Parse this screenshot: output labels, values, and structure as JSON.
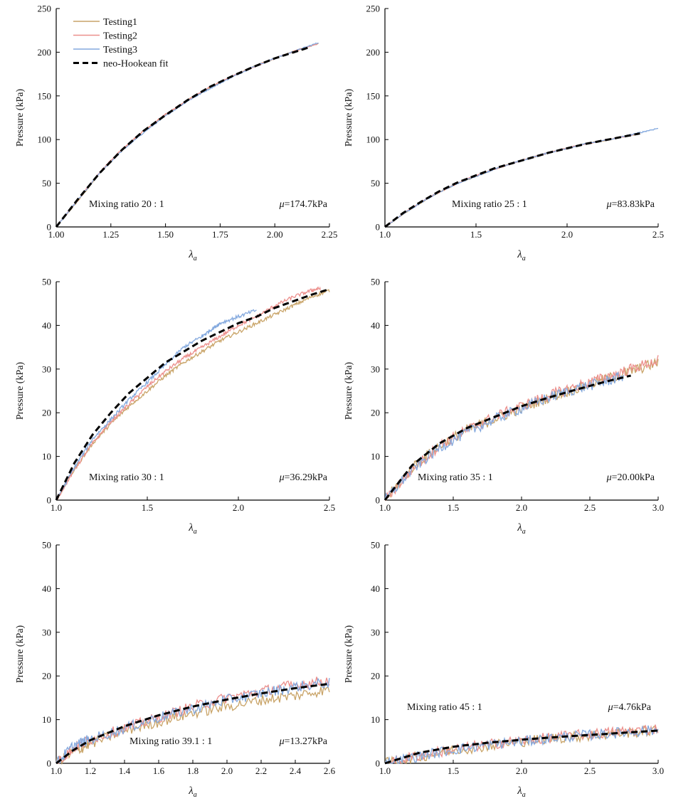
{
  "colors": {
    "Testing1": "#c9a468",
    "Testing2": "#ec8f8c",
    "Testing3": "#84a9de",
    "fit": "#000000"
  },
  "legend": [
    {
      "name": "Testing1",
      "style": "solid",
      "color": "#c9a468"
    },
    {
      "name": "Testing2",
      "style": "solid",
      "color": "#ec8f8c"
    },
    {
      "name": "Testing3",
      "style": "solid",
      "color": "#84a9de"
    },
    {
      "name": "neo-Hookean fit",
      "style": "dashed",
      "color": "#000000"
    }
  ],
  "chart_data": [
    {
      "type": "line",
      "ylabel": "Pressure (kPa)",
      "xlabel_main": "λ",
      "xlabel_sub": "a",
      "xlim": [
        1.0,
        2.25
      ],
      "ylim": [
        0,
        250
      ],
      "xticks": [
        1.0,
        1.25,
        1.5,
        1.75,
        2.0,
        2.25
      ],
      "xticklabels": [
        "1.00",
        "1.25",
        "1.50",
        "1.75",
        "2.00",
        "2.25"
      ],
      "yticks": [
        0,
        50,
        100,
        150,
        200,
        250
      ],
      "yticklabels": [
        "0",
        "50",
        "100",
        "150",
        "200",
        "250"
      ],
      "annotation": "Mixing ratio 20 : 1",
      "mu_symbol": "μ",
      "mu_text": "=174.7kPa",
      "legend": "top-left",
      "series": [
        {
          "name": "Testing1",
          "x": [
            1.0,
            1.1,
            1.2,
            1.3,
            1.4,
            1.5,
            1.6,
            1.7,
            1.8,
            1.9,
            2.0,
            2.1,
            2.2
          ],
          "y": [
            0,
            30,
            62,
            88,
            110,
            128,
            145,
            159,
            172,
            183,
            193,
            202,
            210
          ]
        },
        {
          "name": "Testing2",
          "x": [
            1.0,
            1.1,
            1.2,
            1.3,
            1.4,
            1.5,
            1.6,
            1.7,
            1.8,
            1.9,
            2.0,
            2.1,
            2.2
          ],
          "y": [
            0,
            31,
            63,
            89,
            110,
            129,
            145,
            160,
            172,
            183,
            193,
            202,
            210
          ]
        },
        {
          "name": "Testing3",
          "x": [
            1.0,
            1.1,
            1.2,
            1.3,
            1.4,
            1.5,
            1.6,
            1.7,
            1.8,
            1.9,
            2.0,
            2.1,
            2.2
          ],
          "y": [
            0,
            31,
            62,
            87,
            108,
            127,
            144,
            158,
            171,
            183,
            193,
            202,
            211
          ]
        },
        {
          "name": "neo-Hookean fit",
          "x": [
            1.0,
            1.1,
            1.2,
            1.3,
            1.4,
            1.5,
            1.6,
            1.7,
            1.8,
            1.9,
            2.0,
            2.1,
            2.15
          ],
          "y": [
            0,
            32,
            62,
            88,
            110,
            128,
            145,
            160,
            172,
            183,
            193,
            201,
            205
          ]
        }
      ]
    },
    {
      "type": "line",
      "ylabel": "Pressure (kPa)",
      "xlabel_main": "λ",
      "xlabel_sub": "a",
      "xlim": [
        1.0,
        2.5
      ],
      "ylim": [
        0,
        250
      ],
      "xticks": [
        1.0,
        1.5,
        2.0,
        2.5
      ],
      "xticklabels": [
        "1.0",
        "1.5",
        "2.0",
        "2.5"
      ],
      "yticks": [
        0,
        50,
        100,
        150,
        200,
        250
      ],
      "yticklabels": [
        "0",
        "50",
        "100",
        "150",
        "200",
        "250"
      ],
      "annotation": "Mixing ratio 25 : 1",
      "mu_symbol": "μ",
      "mu_text": "=83.83kPa",
      "series": [
        {
          "name": "Testing1",
          "x": [
            1.0,
            1.1,
            1.2,
            1.3,
            1.4,
            1.5,
            1.6,
            1.7,
            1.8,
            1.9,
            2.0,
            2.1,
            2.2,
            2.3,
            2.4
          ],
          "y": [
            0,
            15,
            28,
            40,
            50,
            58,
            66,
            73,
            79,
            85,
            90,
            95,
            99,
            103,
            107
          ]
        },
        {
          "name": "Testing2",
          "x": [
            1.0,
            1.1,
            1.2,
            1.3,
            1.4,
            1.5,
            1.6,
            1.7,
            1.8,
            1.9,
            2.0,
            2.1,
            2.2,
            2.3,
            2.4
          ],
          "y": [
            0,
            15,
            29,
            40,
            50,
            59,
            66,
            73,
            79,
            85,
            90,
            95,
            99,
            103,
            107
          ]
        },
        {
          "name": "Testing3",
          "x": [
            1.0,
            1.1,
            1.2,
            1.3,
            1.4,
            1.5,
            1.6,
            1.7,
            1.8,
            1.9,
            2.0,
            2.1,
            2.2,
            2.3,
            2.4,
            2.5
          ],
          "y": [
            0,
            15,
            28,
            40,
            50,
            58,
            66,
            73,
            79,
            85,
            90,
            95,
            99,
            103,
            108,
            113
          ]
        },
        {
          "name": "neo-Hookean fit",
          "x": [
            1.0,
            1.1,
            1.2,
            1.3,
            1.4,
            1.5,
            1.6,
            1.7,
            1.8,
            1.9,
            2.0,
            2.1,
            2.2,
            2.3,
            2.4
          ],
          "y": [
            0,
            16,
            29,
            41,
            51,
            59,
            67,
            73,
            79,
            85,
            90,
            95,
            99,
            103,
            107
          ]
        }
      ]
    },
    {
      "type": "line",
      "ylabel": "Pressure (kPa)",
      "xlabel_main": "λ",
      "xlabel_sub": "a",
      "xlim": [
        1.0,
        2.5
      ],
      "ylim": [
        0,
        50
      ],
      "xticks": [
        1.0,
        1.5,
        2.0,
        2.5
      ],
      "xticklabels": [
        "1.0",
        "1.5",
        "2.0",
        "2.5"
      ],
      "yticks": [
        0,
        10,
        20,
        30,
        40,
        50
      ],
      "yticklabels": [
        "0",
        "10",
        "20",
        "30",
        "40",
        "50"
      ],
      "annotation": "Mixing ratio 30 : 1",
      "mu_symbol": "μ",
      "mu_text": "=36.29kPa",
      "series": [
        {
          "name": "Testing1",
          "x": [
            1.0,
            1.1,
            1.2,
            1.3,
            1.4,
            1.5,
            1.6,
            1.7,
            1.8,
            1.9,
            2.0,
            2.1,
            2.2,
            2.3,
            2.4,
            2.5
          ],
          "y": [
            0,
            7,
            13,
            17.5,
            21.5,
            25,
            28.5,
            31.5,
            34,
            36.5,
            38.5,
            40.5,
            42.5,
            44.5,
            46.5,
            48
          ]
        },
        {
          "name": "Testing2",
          "x": [
            1.0,
            1.1,
            1.2,
            1.3,
            1.4,
            1.5,
            1.6,
            1.7,
            1.8,
            1.9,
            2.0,
            2.1,
            2.2,
            2.3,
            2.4,
            2.45
          ],
          "y": [
            0,
            7,
            13,
            18,
            22,
            26,
            29.5,
            32.5,
            35,
            37.5,
            40,
            42,
            44.5,
            46.5,
            48,
            48.5
          ]
        },
        {
          "name": "Testing3",
          "x": [
            1.0,
            1.1,
            1.2,
            1.3,
            1.4,
            1.5,
            1.6,
            1.7,
            1.8,
            1.85,
            1.9,
            2.0,
            2.1
          ],
          "y": [
            0,
            7.5,
            14,
            18.5,
            23,
            27,
            31,
            35,
            37.5,
            39,
            40.5,
            42,
            43.5
          ]
        },
        {
          "name": "neo-Hookean fit",
          "x": [
            1.0,
            1.1,
            1.2,
            1.3,
            1.4,
            1.5,
            1.6,
            1.7,
            1.8,
            1.9,
            2.0,
            2.1,
            2.2,
            2.3,
            2.4,
            2.5
          ],
          "y": [
            0,
            8.5,
            15,
            20,
            24.5,
            28,
            31.5,
            34,
            36.5,
            38.5,
            40.5,
            42,
            44,
            45.5,
            47,
            48.3
          ]
        }
      ]
    },
    {
      "type": "line",
      "ylabel": "Pressure (kPa)",
      "xlabel_main": "λ",
      "xlabel_sub": "a",
      "xlim": [
        1.0,
        3.0
      ],
      "ylim": [
        0,
        50
      ],
      "xticks": [
        1.0,
        1.5,
        2.0,
        2.5,
        3.0
      ],
      "xticklabels": [
        "1.0",
        "1.5",
        "2.0",
        "2.5",
        "3.0"
      ],
      "yticks": [
        0,
        10,
        20,
        30,
        40,
        50
      ],
      "yticklabels": [
        "0",
        "10",
        "20",
        "30",
        "40",
        "50"
      ],
      "annotation": "Mixing ratio 35 : 1",
      "mu_symbol": "μ",
      "mu_text": "=20.00kPa",
      "series": [
        {
          "name": "Testing1",
          "x": [
            1.0,
            1.2,
            1.4,
            1.6,
            1.8,
            2.0,
            2.2,
            2.4,
            2.6,
            2.8,
            3.0
          ],
          "y": [
            0,
            7.5,
            12.5,
            16,
            18.5,
            21,
            23.5,
            25.5,
            27.5,
            29.5,
            31.5
          ]
        },
        {
          "name": "Testing2",
          "x": [
            1.0,
            1.2,
            1.4,
            1.6,
            1.8,
            2.0,
            2.2,
            2.4,
            2.6,
            2.8,
            3.0
          ],
          "y": [
            0,
            7,
            12.5,
            16,
            19,
            21.5,
            24,
            26,
            28,
            30,
            32
          ]
        },
        {
          "name": "Testing3",
          "x": [
            1.0,
            1.2,
            1.4,
            1.6,
            1.8,
            2.0,
            2.2,
            2.4,
            2.6,
            2.75
          ],
          "y": [
            0,
            7,
            12,
            15.5,
            18.5,
            21,
            23.5,
            25.5,
            27,
            28.5
          ]
        },
        {
          "name": "neo-Hookean fit",
          "x": [
            1.0,
            1.2,
            1.4,
            1.6,
            1.8,
            2.0,
            2.2,
            2.4,
            2.6,
            2.8
          ],
          "y": [
            0,
            8,
            13,
            16.5,
            19,
            21.5,
            23.5,
            25.3,
            27,
            28.5
          ]
        }
      ]
    },
    {
      "type": "line",
      "ylabel": "Pressure (kPa)",
      "xlabel_main": "λ",
      "xlabel_sub": "a",
      "xlim": [
        1.0,
        2.6
      ],
      "ylim": [
        0,
        50
      ],
      "xticks": [
        1.0,
        1.2,
        1.4,
        1.6,
        1.8,
        2.0,
        2.2,
        2.4,
        2.6
      ],
      "xticklabels": [
        "1.0",
        "1.2",
        "1.4",
        "1.6",
        "1.8",
        "2.0",
        "2.2",
        "2.4",
        "2.6"
      ],
      "yticks": [
        0,
        10,
        20,
        30,
        40,
        50
      ],
      "yticklabels": [
        "0",
        "10",
        "20",
        "30",
        "40",
        "50"
      ],
      "annotation": "Mixing ratio 39.1 : 1",
      "mu_symbol": "μ",
      "mu_text": "=13.27kPa",
      "series": [
        {
          "name": "Testing1",
          "x": [
            1.0,
            1.1,
            1.2,
            1.4,
            1.6,
            1.8,
            2.0,
            2.2,
            2.4,
            2.6
          ],
          "y": [
            0,
            2.5,
            4.5,
            7.5,
            9.5,
            11.5,
            13,
            14.5,
            15.5,
            17
          ]
        },
        {
          "name": "Testing2",
          "x": [
            1.0,
            1.1,
            1.2,
            1.4,
            1.6,
            1.8,
            2.0,
            2.2,
            2.4,
            2.6
          ],
          "y": [
            0,
            3.5,
            5.5,
            8,
            10.5,
            13,
            15,
            16.5,
            18,
            19
          ]
        },
        {
          "name": "Testing3",
          "x": [
            1.0,
            1.1,
            1.2,
            1.4,
            1.6,
            1.8,
            2.0,
            2.2,
            2.4,
            2.6
          ],
          "y": [
            0,
            4,
            5.5,
            8,
            10.5,
            12.5,
            14.5,
            16,
            17.5,
            18.5
          ]
        },
        {
          "name": "neo-Hookean fit",
          "x": [
            1.0,
            1.1,
            1.2,
            1.4,
            1.6,
            1.8,
            2.0,
            2.2,
            2.4,
            2.6
          ],
          "y": [
            0,
            3,
            5.3,
            8.5,
            11,
            13,
            14.6,
            16,
            17.2,
            18.2
          ]
        }
      ]
    },
    {
      "type": "line",
      "ylabel": "Pressure (kPa)",
      "xlabel_main": "λ",
      "xlabel_sub": "a",
      "xlim": [
        1.0,
        3.0
      ],
      "ylim": [
        0,
        50
      ],
      "xticks": [
        1.0,
        1.5,
        2.0,
        2.5,
        3.0
      ],
      "xticklabels": [
        "1.0",
        "1.5",
        "2.0",
        "2.5",
        "3.0"
      ],
      "yticks": [
        0,
        10,
        20,
        30,
        40,
        50
      ],
      "yticklabels": [
        "0",
        "10",
        "20",
        "30",
        "40",
        "50"
      ],
      "annotation": "Mixing ratio 45 : 1",
      "mu_symbol": "μ",
      "mu_text": "=4.76kPa",
      "series": [
        {
          "name": "Testing1",
          "x": [
            1.0,
            1.25,
            1.5,
            1.75,
            2.0,
            2.25,
            2.5,
            2.75,
            3.0
          ],
          "y": [
            0,
            1.5,
            3,
            4,
            5,
            5.8,
            6.3,
            7,
            7.5
          ]
        },
        {
          "name": "Testing2",
          "x": [
            1.0,
            1.25,
            1.5,
            1.75,
            2.0,
            2.25,
            2.5,
            2.75,
            3.0
          ],
          "y": [
            0,
            1.8,
            3.2,
            4.3,
            5.2,
            6,
            6.7,
            7.3,
            8
          ]
        },
        {
          "name": "Testing3",
          "x": [
            1.0,
            1.25,
            1.5,
            1.75,
            2.0,
            2.25,
            2.5,
            2.75,
            3.0
          ],
          "y": [
            0,
            1.7,
            3.1,
            4.2,
            5,
            5.9,
            6.5,
            7.1,
            7.6
          ]
        },
        {
          "name": "neo-Hookean fit",
          "x": [
            1.0,
            1.25,
            1.5,
            1.75,
            2.0,
            2.25,
            2.5,
            2.75,
            3.0
          ],
          "y": [
            0,
            2.4,
            3.8,
            4.7,
            5.4,
            6,
            6.5,
            7,
            7.5
          ]
        }
      ]
    }
  ]
}
